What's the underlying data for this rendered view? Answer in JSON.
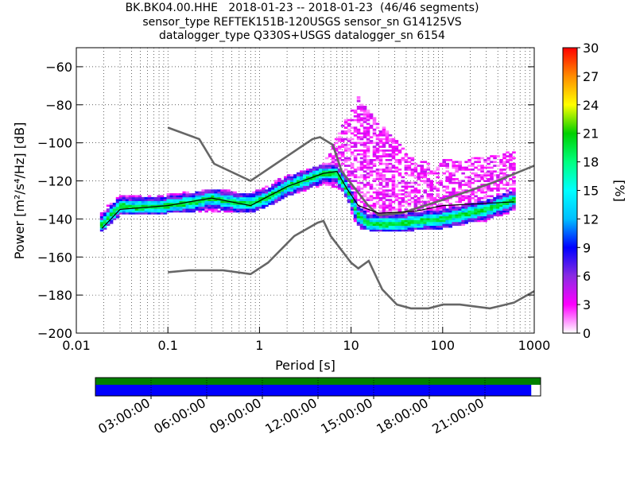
{
  "title": {
    "line1": "BK.BK04.00.HHE   2018-01-23 -- 2018-01-23  (46/46 segments)",
    "line2": "sensor_type REFTEK151B-120USGS sensor_sn G14125VS",
    "line3": "datalogger_type Q330S+USGS datalogger_sn 6154"
  },
  "chart_data": {
    "type": "heatmap",
    "xlabel": "Period [s]",
    "ylabel": "Power [m²/s⁴/Hz] [dB]",
    "xscale": "log",
    "xlim": [
      0.01,
      1000
    ],
    "ylim": [
      -200,
      -50
    ],
    "x_ticks": [
      {
        "value": 0.01,
        "label": "0.01"
      },
      {
        "value": 0.1,
        "label": "0.1"
      },
      {
        "value": 1,
        "label": "1"
      },
      {
        "value": 10,
        "label": "10"
      },
      {
        "value": 100,
        "label": "100"
      },
      {
        "value": 1000,
        "label": "1000"
      }
    ],
    "y_ticks": [
      {
        "value": -60,
        "label": "−60"
      },
      {
        "value": -80,
        "label": "−80"
      },
      {
        "value": -100,
        "label": "−100"
      },
      {
        "value": -120,
        "label": "−120"
      },
      {
        "value": -140,
        "label": "−140"
      },
      {
        "value": -160,
        "label": "−160"
      },
      {
        "value": -180,
        "label": "−180"
      },
      {
        "value": -200,
        "label": "−200"
      }
    ],
    "grid": true,
    "colorbar": {
      "label": "[%]",
      "range": [
        0,
        30
      ],
      "ticks": [
        "0",
        "3",
        "6",
        "9",
        "12",
        "15",
        "18",
        "21",
        "24",
        "27",
        "30"
      ],
      "colormap": [
        "#ffffff",
        "#ff00ff",
        "#8a2be2",
        "#0000ff",
        "#00bfff",
        "#00ffff",
        "#00ff7f",
        "#00d000",
        "#ffff00",
        "#ff8c00",
        "#ff0000"
      ]
    },
    "ridge": [
      {
        "x": 0.019,
        "y": -143
      },
      {
        "x": 0.03,
        "y": -133
      },
      {
        "x": 0.05,
        "y": -134
      },
      {
        "x": 0.1,
        "y": -133
      },
      {
        "x": 0.2,
        "y": -131
      },
      {
        "x": 0.3,
        "y": -129
      },
      {
        "x": 0.5,
        "y": -131
      },
      {
        "x": 0.8,
        "y": -132
      },
      {
        "x": 1.2,
        "y": -129
      },
      {
        "x": 2,
        "y": -123
      },
      {
        "x": 3,
        "y": -120
      },
      {
        "x": 5,
        "y": -116
      },
      {
        "x": 7,
        "y": -116
      },
      {
        "x": 9,
        "y": -124
      },
      {
        "x": 12,
        "y": -138
      },
      {
        "x": 15,
        "y": -142
      },
      {
        "x": 22,
        "y": -143
      },
      {
        "x": 40,
        "y": -142
      },
      {
        "x": 100,
        "y": -140
      },
      {
        "x": 300,
        "y": -135
      },
      {
        "x": 600,
        "y": -130
      }
    ],
    "spread": [
      {
        "x": 0.019,
        "lo": -146,
        "hi": -137
      },
      {
        "x": 0.03,
        "lo": -137,
        "hi": -128
      },
      {
        "x": 0.1,
        "lo": -136,
        "hi": -128
      },
      {
        "x": 0.3,
        "lo": -135,
        "hi": -125
      },
      {
        "x": 0.8,
        "lo": -136,
        "hi": -127
      },
      {
        "x": 2,
        "lo": -128,
        "hi": -118
      },
      {
        "x": 5,
        "lo": -121,
        "hi": -112
      },
      {
        "x": 8,
        "lo": -124,
        "hi": -92
      },
      {
        "x": 12,
        "lo": -144,
        "hi": -76
      },
      {
        "x": 20,
        "lo": -146,
        "hi": -90
      },
      {
        "x": 50,
        "lo": -145,
        "hi": -110
      },
      {
        "x": 100,
        "lo": -144,
        "hi": -110
      },
      {
        "x": 300,
        "lo": -140,
        "hi": -108
      },
      {
        "x": 600,
        "lo": -135,
        "hi": -105
      }
    ],
    "mean_curve": [
      {
        "x": 0.019,
        "y": -145
      },
      {
        "x": 0.03,
        "y": -135
      },
      {
        "x": 0.1,
        "y": -133
      },
      {
        "x": 0.3,
        "y": -129
      },
      {
        "x": 0.8,
        "y": -133
      },
      {
        "x": 2,
        "y": -123
      },
      {
        "x": 5,
        "y": -116
      },
      {
        "x": 7,
        "y": -115
      },
      {
        "x": 9,
        "y": -124
      },
      {
        "x": 12,
        "y": -133
      },
      {
        "x": 20,
        "y": -137
      },
      {
        "x": 50,
        "y": -136
      },
      {
        "x": 100,
        "y": -133
      },
      {
        "x": 600,
        "y": -131
      }
    ],
    "nhnm": [
      {
        "x": 0.1,
        "y": -92
      },
      {
        "x": 0.22,
        "y": -98
      },
      {
        "x": 0.32,
        "y": -111
      },
      {
        "x": 0.8,
        "y": -120
      },
      {
        "x": 3.8,
        "y": -98
      },
      {
        "x": 4.6,
        "y": -97
      },
      {
        "x": 6.3,
        "y": -101
      },
      {
        "x": 7.9,
        "y": -115
      },
      {
        "x": 15.4,
        "y": -133
      },
      {
        "x": 20,
        "y": -138
      },
      {
        "x": 35,
        "y": -137
      },
      {
        "x": 100,
        "y": -130
      },
      {
        "x": 350,
        "y": -121
      },
      {
        "x": 1000,
        "y": -112
      }
    ],
    "nlnm": [
      {
        "x": 0.1,
        "y": -168
      },
      {
        "x": 0.17,
        "y": -167
      },
      {
        "x": 0.4,
        "y": -167
      },
      {
        "x": 0.8,
        "y": -169
      },
      {
        "x": 1.24,
        "y": -163
      },
      {
        "x": 2.4,
        "y": -149
      },
      {
        "x": 4.3,
        "y": -142
      },
      {
        "x": 5,
        "y": -141
      },
      {
        "x": 6,
        "y": -149
      },
      {
        "x": 10,
        "y": -163
      },
      {
        "x": 12,
        "y": -166
      },
      {
        "x": 15.6,
        "y": -162
      },
      {
        "x": 21.9,
        "y": -177
      },
      {
        "x": 31.6,
        "y": -185
      },
      {
        "x": 45,
        "y": -187
      },
      {
        "x": 70,
        "y": -187
      },
      {
        "x": 101,
        "y": -185
      },
      {
        "x": 154,
        "y": -185
      },
      {
        "x": 328,
        "y": -187
      },
      {
        "x": 600,
        "y": -184
      },
      {
        "x": 1000,
        "y": -178
      }
    ],
    "timeline": {
      "tick_labels": [
        "03:00:00",
        "06:00:00",
        "09:00:00",
        "12:00:00",
        "15:00:00",
        "18:00:00",
        "21:00:00"
      ],
      "data_fraction": 1.0,
      "psd_fraction": 0.979,
      "data_color": "#008000",
      "psd_color": "#0000ff"
    }
  }
}
